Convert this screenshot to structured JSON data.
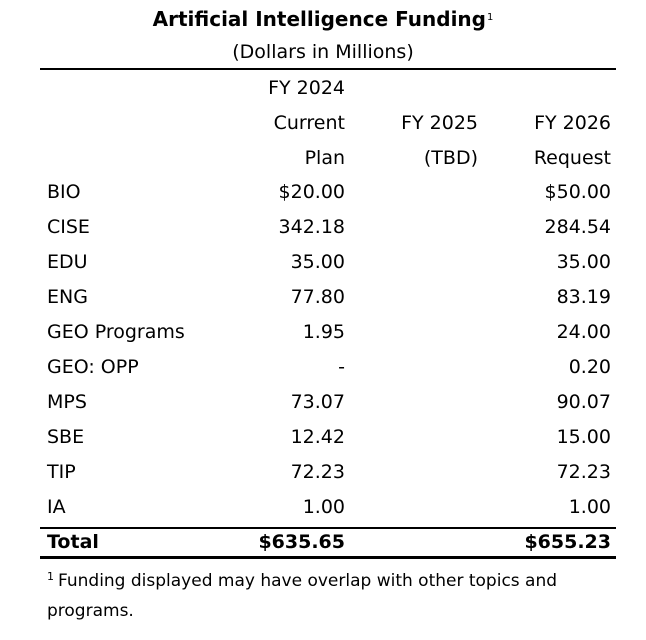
{
  "title": {
    "text": "Artificial Intelligence Funding",
    "footnote_marker": "1"
  },
  "subtitle": "(Dollars in Millions)",
  "columns": {
    "fy2024": [
      "FY 2024",
      "Current",
      "Plan"
    ],
    "fy2025": [
      "FY 2025",
      "(TBD)"
    ],
    "fy2026": [
      "FY 2026",
      "Request"
    ]
  },
  "rows": [
    {
      "label": "BIO",
      "fy2024": "$20.00",
      "fy2025": "",
      "fy2026": "$50.00"
    },
    {
      "label": "CISE",
      "fy2024": "342.18",
      "fy2025": "",
      "fy2026": "284.54"
    },
    {
      "label": "EDU",
      "fy2024": "35.00",
      "fy2025": "",
      "fy2026": "35.00"
    },
    {
      "label": "ENG",
      "fy2024": "77.80",
      "fy2025": "",
      "fy2026": "83.19"
    },
    {
      "label": "GEO Programs",
      "fy2024": "1.95",
      "fy2025": "",
      "fy2026": "24.00"
    },
    {
      "label": "GEO: OPP",
      "fy2024": "-",
      "fy2025": "",
      "fy2026": "0.20"
    },
    {
      "label": "MPS",
      "fy2024": "73.07",
      "fy2025": "",
      "fy2026": "90.07"
    },
    {
      "label": "SBE",
      "fy2024": "12.42",
      "fy2025": "",
      "fy2026": "15.00"
    },
    {
      "label": "TIP",
      "fy2024": "72.23",
      "fy2025": "",
      "fy2026": "72.23"
    },
    {
      "label": "IA",
      "fy2024": "1.00",
      "fy2025": "",
      "fy2026": "1.00"
    }
  ],
  "total": {
    "label": "Total",
    "fy2024": "$635.65",
    "fy2025": "",
    "fy2026": "$655.23"
  },
  "footnote": {
    "marker": "1",
    "text": "Funding displayed may have overlap with other topics and programs."
  }
}
